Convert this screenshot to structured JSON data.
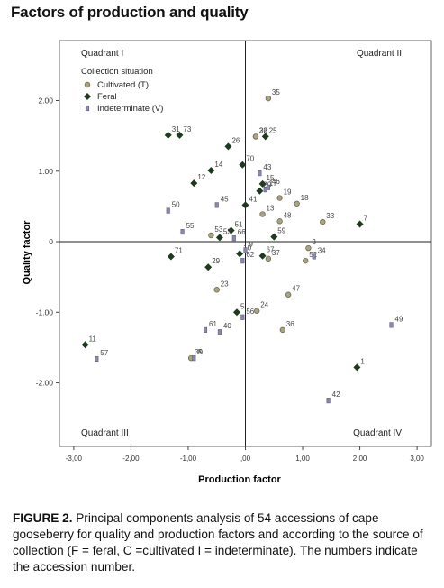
{
  "figure": {
    "title": "Factors of production and quality",
    "caption_lead": "FIGURE 2.",
    "caption_text": " Principal components analysis of 54 accessions of cape gooseberry for quality and production factors and according to the source of collection (F = feral, C =cultivated I = indeterminate). The numbers indicate the accession number."
  },
  "chart_data": {
    "type": "scatter",
    "xlabel": "Production factor",
    "ylabel": "Quality factor",
    "xlim": [
      -3.25,
      3.25
    ],
    "ylim": [
      -2.9,
      2.85
    ],
    "x_ticks": [
      -3,
      -2,
      -1,
      0,
      1,
      2,
      3
    ],
    "x_tick_labels": [
      "-3,00",
      "-2,00",
      "-1,00",
      ",00",
      "1,00",
      "2,00",
      "3,00"
    ],
    "y_ticks": [
      2,
      1,
      0,
      -1,
      -2
    ],
    "y_tick_labels": [
      "2.00",
      "1.00",
      "0",
      "-1.00",
      "-2.00"
    ],
    "grid": false,
    "reference_lines": {
      "x": 0,
      "y": 0
    },
    "quadrant_labels": [
      {
        "text": "Quadrant I",
        "position": "top-left"
      },
      {
        "text": "Quadrant II",
        "position": "top-right"
      },
      {
        "text": "Quadrant III",
        "position": "bottom-left"
      },
      {
        "text": "Quadrant IV",
        "position": "bottom-right"
      }
    ],
    "legend": {
      "title": "Collection situation",
      "position": "top-left",
      "entries": [
        {
          "label": "Cultivated (T)",
          "marker": "circle",
          "color": "#a9a483"
        },
        {
          "label": "Feral",
          "marker": "diamond",
          "color": "#1f3b1f"
        },
        {
          "label": "Indeterminate (V)",
          "marker": "square",
          "color": "#8888aa"
        }
      ]
    },
    "series": [
      {
        "name": "Cultivated (T)",
        "marker": "circle",
        "color": "#a9a483",
        "points": [
          {
            "label": "35",
            "x": 0.4,
            "y": 2.03
          },
          {
            "label": "32",
            "x": 0.18,
            "y": 1.49
          },
          {
            "label": "26",
            "x": 0.18,
            "y": 1.49
          },
          {
            "label": "18",
            "x": 0.9,
            "y": 0.54
          },
          {
            "label": "19",
            "x": 0.6,
            "y": 0.62
          },
          {
            "label": "13",
            "x": 0.3,
            "y": 0.39
          },
          {
            "label": "48",
            "x": 0.6,
            "y": 0.29
          },
          {
            "label": "33",
            "x": 1.35,
            "y": 0.28
          },
          {
            "label": "53",
            "x": -0.6,
            "y": 0.09
          },
          {
            "label": "3",
            "x": 1.1,
            "y": -0.09
          },
          {
            "label": "37",
            "x": 0.4,
            "y": -0.24
          },
          {
            "label": "52",
            "x": 1.05,
            "y": -0.27
          },
          {
            "label": "23",
            "x": -0.5,
            "y": -0.68
          },
          {
            "label": "47",
            "x": 0.75,
            "y": -0.75
          },
          {
            "label": "24",
            "x": 0.2,
            "y": -0.98
          },
          {
            "label": "36",
            "x": 0.65,
            "y": -1.25
          },
          {
            "label": "39",
            "x": -0.95,
            "y": -1.65
          }
        ]
      },
      {
        "name": "Feral",
        "marker": "diamond",
        "color": "#1f3b1f",
        "points": [
          {
            "label": "25",
            "x": 0.35,
            "y": 1.49
          },
          {
            "label": "31",
            "x": -1.35,
            "y": 1.51
          },
          {
            "label": "73",
            "x": -1.15,
            "y": 1.51
          },
          {
            "label": "26",
            "x": -0.3,
            "y": 1.35
          },
          {
            "label": "70",
            "x": -0.05,
            "y": 1.09
          },
          {
            "label": "14",
            "x": -0.6,
            "y": 1.01
          },
          {
            "label": "12",
            "x": -0.9,
            "y": 0.83
          },
          {
            "label": "15",
            "x": 0.3,
            "y": 0.82
          },
          {
            "label": "20",
            "x": 0.25,
            "y": 0.72
          },
          {
            "label": "41",
            "x": 0.0,
            "y": 0.52
          },
          {
            "label": "7",
            "x": 2.0,
            "y": 0.25
          },
          {
            "label": "51",
            "x": -0.25,
            "y": 0.16
          },
          {
            "label": "53",
            "x": -0.45,
            "y": 0.06
          },
          {
            "label": "59",
            "x": 0.5,
            "y": 0.07
          },
          {
            "label": "10",
            "x": -0.1,
            "y": -0.17
          },
          {
            "label": "29",
            "x": -0.65,
            "y": -0.36
          },
          {
            "label": "71",
            "x": -1.3,
            "y": -0.21
          },
          {
            "label": "67",
            "x": 0.3,
            "y": -0.2
          },
          {
            "label": "5",
            "x": -0.15,
            "y": -1.0
          },
          {
            "label": "11",
            "x": -2.8,
            "y": -1.46
          },
          {
            "label": "1",
            "x": 1.95,
            "y": -1.78
          }
        ]
      },
      {
        "name": "Indeterminate (V)",
        "marker": "square",
        "color": "#8888aa",
        "points": [
          {
            "label": "43",
            "x": 0.25,
            "y": 0.97
          },
          {
            "label": "46",
            "x": 0.4,
            "y": 0.77
          },
          {
            "label": "17",
            "x": 0.35,
            "y": 0.74
          },
          {
            "label": "45",
            "x": -0.5,
            "y": 0.52
          },
          {
            "label": "50",
            "x": -1.35,
            "y": 0.44
          },
          {
            "label": "55",
            "x": -1.1,
            "y": 0.14
          },
          {
            "label": "66",
            "x": -0.2,
            "y": 0.05
          },
          {
            "label": "9",
            "x": 0.0,
            "y": -0.12
          },
          {
            "label": "62",
            "x": -0.05,
            "y": -0.27
          },
          {
            "label": "34",
            "x": 1.2,
            "y": -0.21
          },
          {
            "label": "56",
            "x": -0.05,
            "y": -1.07
          },
          {
            "label": "61",
            "x": -0.7,
            "y": -1.25
          },
          {
            "label": "40",
            "x": -0.45,
            "y": -1.28
          },
          {
            "label": "49",
            "x": 2.55,
            "y": -1.18
          },
          {
            "label": "57",
            "x": -2.6,
            "y": -1.66
          },
          {
            "label": "8",
            "x": -0.9,
            "y": -1.65
          },
          {
            "label": "42",
            "x": 1.45,
            "y": -2.25
          }
        ]
      }
    ]
  }
}
